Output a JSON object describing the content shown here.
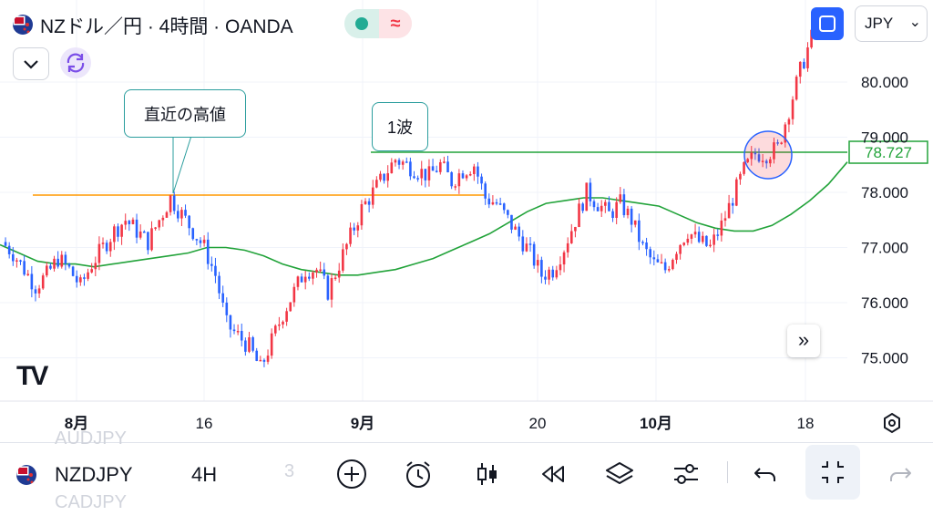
{
  "header": {
    "title": "NZドル／円 · 4時間 · OANDA",
    "currency": "JPY"
  },
  "annotations": {
    "recent_high": "直近の高値",
    "wave1": "1波"
  },
  "toolbar": {
    "symbol": "NZDJPY",
    "interval": "4H",
    "ghost_prev": "AUDJPY",
    "ghost_next": "CADJPY",
    "ghost_partial": "3"
  },
  "icons": [
    "flag-nz-icon",
    "status-dot-icon",
    "wave-icon",
    "chevron-down-icon",
    "sync-icon",
    "fullscreen-icon",
    "forward-icon",
    "tradingview-logo",
    "gear-icon",
    "plus-circle-icon",
    "alarm-icon",
    "candles-icon",
    "rewind-icon",
    "layers-icon",
    "sliders-icon",
    "undo-icon",
    "collapse-icon",
    "redo-icon"
  ],
  "colors": {
    "up": "#f23645",
    "down": "#2962ff",
    "ma": "#22a33a",
    "hline": "#ff9800",
    "level": "#22a33a",
    "accent": "#2962ff"
  },
  "chart_data": {
    "type": "candlestick",
    "ylim": [
      74.4,
      81.2
    ],
    "yticks": [
      "80.000",
      "79.000",
      "78.000",
      "77.000",
      "76.000",
      "75.000"
    ],
    "x_ticks": [
      "8月",
      "16",
      "9月",
      "20",
      "10月",
      "18"
    ],
    "last_price_label": "78.727",
    "horizontal_levels": [
      {
        "value": 78.727,
        "color": "level"
      },
      {
        "value": 77.95,
        "color": "hline"
      }
    ],
    "moving_average": [
      77.05,
      76.9,
      76.75,
      76.7,
      76.7,
      76.65,
      76.7,
      76.75,
      76.8,
      76.85,
      76.9,
      77.0,
      77.0,
      76.95,
      76.85,
      76.7,
      76.6,
      76.55,
      76.5,
      76.5,
      76.55,
      76.6,
      76.7,
      76.8,
      76.95,
      77.1,
      77.25,
      77.45,
      77.65,
      77.8,
      77.85,
      77.9,
      77.9,
      77.85,
      77.8,
      77.75,
      77.6,
      77.45,
      77.35,
      77.3,
      77.3,
      77.4,
      77.6,
      77.85,
      78.15,
      78.55
    ],
    "prices": [
      77.1,
      76.9,
      76.6,
      76.3,
      76.5,
      76.8,
      76.6,
      76.3,
      76.7,
      77.0,
      77.3,
      77.5,
      77.3,
      77.1,
      77.5,
      77.9,
      77.6,
      77.3,
      77.0,
      76.5,
      75.6,
      75.4,
      75.2,
      74.8,
      75.3,
      75.8,
      76.2,
      76.6,
      76.6,
      76.2,
      76.7,
      77.2,
      77.7,
      78.0,
      78.3,
      78.6,
      78.5,
      78.4,
      78.3,
      78.5,
      78.2,
      78.4,
      78.5,
      77.9,
      77.8,
      77.5,
      77.2,
      76.9,
      76.5,
      76.6,
      77.0,
      77.5,
      78.0,
      77.8,
      77.6,
      77.8,
      77.5,
      77.0,
      76.7,
      76.6,
      77.0,
      77.3,
      77.1,
      77.0,
      77.4,
      77.9,
      78.4,
      78.7,
      78.7,
      78.8,
      79.5,
      80.2,
      80.8,
      81.2
    ]
  }
}
